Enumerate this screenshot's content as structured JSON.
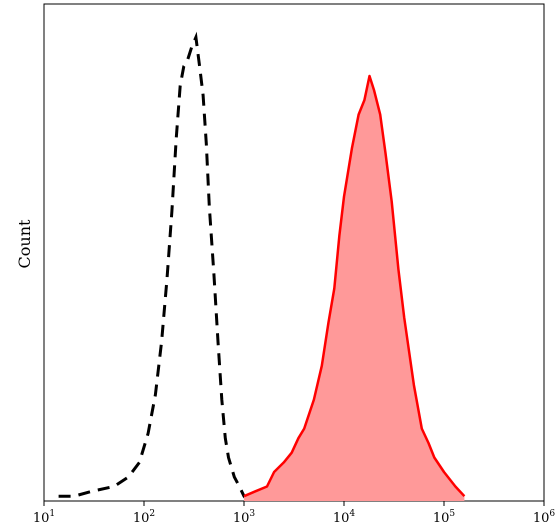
{
  "chart_data": {
    "type": "area",
    "title": "",
    "xlabel": "",
    "ylabel": "Count",
    "x_scale": "log",
    "xlim": [
      10,
      1000000
    ],
    "ylim": [
      0,
      100
    ],
    "x_ticks": [
      {
        "base": "10",
        "exp": "1",
        "value": 10
      },
      {
        "base": "10",
        "exp": "2",
        "value": 100
      },
      {
        "base": "10",
        "exp": "3",
        "value": 1000
      },
      {
        "base": "10",
        "exp": "4",
        "value": 10000
      },
      {
        "base": "10",
        "exp": "5",
        "value": 100000
      },
      {
        "base": "10",
        "exp": "6",
        "value": 1000000
      }
    ],
    "grid": false,
    "legend": "none",
    "series": [
      {
        "style": "dashed-line",
        "color": "#000000",
        "x": [
          14,
          20,
          30,
          50,
          70,
          90,
          110,
          130,
          150,
          170,
          190,
          210,
          230,
          250,
          270,
          300,
          330,
          360,
          390,
          420,
          450,
          500,
          550,
          600,
          650,
          700,
          800,
          900,
          1000,
          1100
        ],
        "y": [
          1,
          1,
          2,
          3,
          5,
          8,
          14,
          22,
          33,
          46,
          60,
          75,
          86,
          90,
          91,
          94,
          96,
          90,
          84,
          74,
          61,
          47,
          33,
          21,
          13,
          9,
          5,
          3,
          1,
          0
        ]
      },
      {
        "style": "filled-area",
        "color": "#ff0000",
        "fill": "#ff9999",
        "x": [
          1000,
          1300,
          1700,
          2000,
          2500,
          3000,
          3500,
          4000,
          5000,
          6000,
          7000,
          8000,
          9000,
          10000,
          12000,
          14000,
          16000,
          18000,
          20000,
          23000,
          26000,
          30000,
          35000,
          40000,
          50000,
          60000,
          70000,
          80000,
          100000,
          130000,
          160000
        ],
        "y": [
          1,
          2,
          3,
          6,
          8,
          10,
          13,
          15,
          21,
          28,
          37,
          44,
          55,
          63,
          73,
          80,
          83,
          88,
          85,
          80,
          72,
          62,
          48,
          38,
          24,
          15,
          12,
          9,
          6,
          3,
          1
        ]
      }
    ]
  }
}
